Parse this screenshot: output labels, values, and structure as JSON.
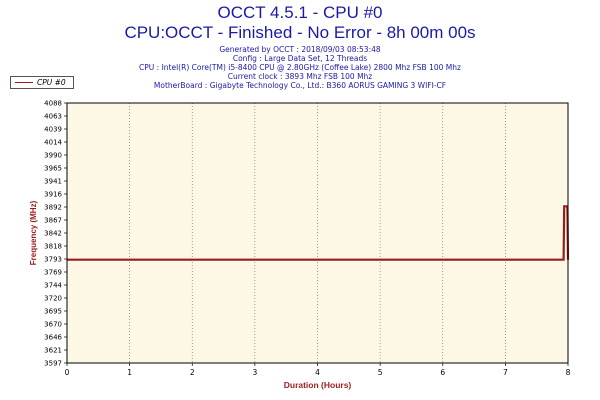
{
  "chart_data": {
    "type": "line",
    "title": "OCCT 4.5.1 - CPU #0",
    "subtitle": "CPU:OCCT - Finished - No Error - 8h 00m 00s",
    "info_lines": [
      "Generated by OCCT : 2018/09/03 08:53:48",
      "Config : Large Data Set, 12 Threads",
      "CPU : Intel(R) Core(TM) i5-8400 CPU @ 2.80GHz (Coffee Lake) 2800 Mhz FSB 100 Mhz",
      "Current clock : 3893 Mhz FSB 100 Mhz",
      "MotherBoard : Gigabyte Technology Co., Ltd.: B360 AORUS GAMING 3 WIFI-CF"
    ],
    "xlabel": "Duration (Hours)",
    "ylabel": "Frequency (MHz)",
    "xlim": [
      0,
      8
    ],
    "ylim": [
      3597,
      4088
    ],
    "xticks": [
      "0",
      "1",
      "2",
      "3",
      "4",
      "5",
      "6",
      "7",
      "8"
    ],
    "yticks": [
      "4088",
      "4063",
      "4039",
      "4014",
      "3990",
      "3965",
      "3941",
      "3916",
      "3892",
      "3867",
      "3842",
      "3818",
      "3793",
      "3769",
      "3744",
      "3720",
      "3695",
      "3670",
      "3646",
      "3621",
      "3597"
    ],
    "grid": true,
    "legend_position": "top-left",
    "series": [
      {
        "name": "CPU #0",
        "color": "#9b1c1c",
        "x": [
          0,
          0.5,
          1,
          1.5,
          2,
          2.5,
          3,
          3.5,
          4,
          4.5,
          5,
          5.5,
          6,
          6.5,
          7,
          7.5,
          7.93,
          7.94,
          7.99,
          8.0
        ],
        "y": [
          3792,
          3792,
          3792,
          3792,
          3792,
          3792,
          3792,
          3792,
          3792,
          3792,
          3792,
          3792,
          3792,
          3792,
          3792,
          3792,
          3792,
          3893,
          3893,
          3792
        ]
      }
    ]
  }
}
